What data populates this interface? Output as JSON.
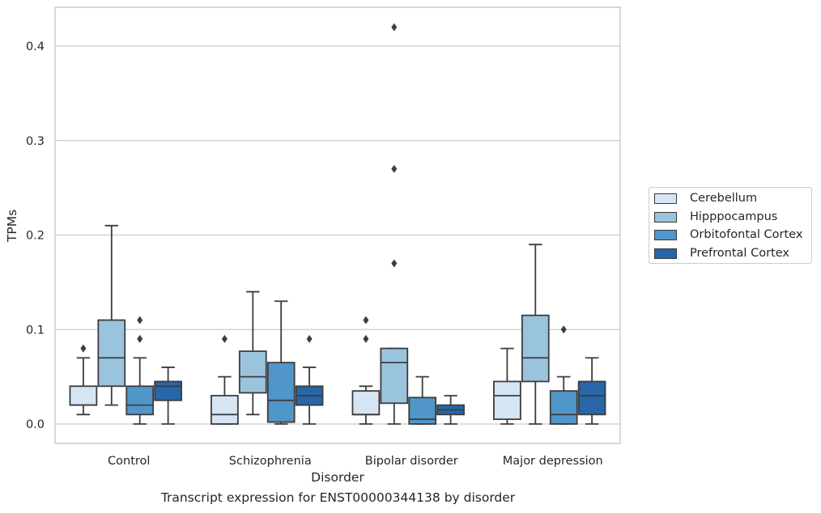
{
  "chart_data": {
    "type": "box",
    "xlabel": "Disorder",
    "ylabel": "TPMs",
    "caption": "Transcript expression for ENST00000344138 by disorder",
    "categories": [
      "Control",
      "Schizophrenia",
      "Bipolar disorder",
      "Major depression"
    ],
    "ylim": [
      -0.02,
      0.44
    ],
    "yticks": [
      0.0,
      0.1,
      0.2,
      0.3,
      0.4
    ],
    "ytick_labels": [
      "0.0",
      "0.1",
      "0.2",
      "0.3",
      "0.4"
    ],
    "grid": "horizontal",
    "legend_position": "right",
    "series": [
      {
        "name": "Cerebellum",
        "color": "#d6e5f4",
        "boxes": [
          {
            "whislo": 0.01,
            "q1": 0.02,
            "med": 0.02,
            "q3": 0.04,
            "whishi": 0.07,
            "fliers": [
              0.08
            ]
          },
          {
            "whislo": 0.0,
            "q1": 0.0,
            "med": 0.01,
            "q3": 0.03,
            "whishi": 0.05,
            "fliers": [
              0.09
            ]
          },
          {
            "whislo": 0.0,
            "q1": 0.01,
            "med": 0.01,
            "q3": 0.035,
            "whishi": 0.04,
            "fliers": [
              0.09,
              0.11
            ]
          },
          {
            "whislo": 0.0,
            "q1": 0.005,
            "med": 0.03,
            "q3": 0.045,
            "whishi": 0.08,
            "fliers": []
          }
        ]
      },
      {
        "name": "Hipppocampus",
        "color": "#9ac3de",
        "boxes": [
          {
            "whislo": 0.02,
            "q1": 0.04,
            "med": 0.07,
            "q3": 0.11,
            "whishi": 0.21,
            "fliers": []
          },
          {
            "whislo": 0.01,
            "q1": 0.033,
            "med": 0.05,
            "q3": 0.077,
            "whishi": 0.14,
            "fliers": []
          },
          {
            "whislo": 0.0,
            "q1": 0.022,
            "med": 0.065,
            "q3": 0.08,
            "whishi": 0.08,
            "fliers": [
              0.17,
              0.27,
              0.42
            ]
          },
          {
            "whislo": 0.0,
            "q1": 0.045,
            "med": 0.07,
            "q3": 0.115,
            "whishi": 0.19,
            "fliers": []
          }
        ]
      },
      {
        "name": "Orbitofontal Cortex",
        "color": "#5096c9",
        "boxes": [
          {
            "whislo": 0.0,
            "q1": 0.01,
            "med": 0.02,
            "q3": 0.04,
            "whishi": 0.07,
            "fliers": [
              0.09,
              0.11
            ]
          },
          {
            "whislo": 0.0,
            "q1": 0.002,
            "med": 0.025,
            "q3": 0.065,
            "whishi": 0.13,
            "fliers": []
          },
          {
            "whislo": 0.0,
            "q1": 0.0,
            "med": 0.005,
            "q3": 0.028,
            "whishi": 0.05,
            "fliers": []
          },
          {
            "whislo": 0.0,
            "q1": 0.0,
            "med": 0.01,
            "q3": 0.035,
            "whishi": 0.05,
            "fliers": [
              0.1
            ]
          }
        ]
      },
      {
        "name": "Prefrontal Cortex",
        "color": "#2766a8",
        "boxes": [
          {
            "whislo": 0.0,
            "q1": 0.025,
            "med": 0.04,
            "q3": 0.045,
            "whishi": 0.06,
            "fliers": []
          },
          {
            "whislo": 0.0,
            "q1": 0.02,
            "med": 0.03,
            "q3": 0.04,
            "whishi": 0.06,
            "fliers": [
              0.09
            ]
          },
          {
            "whislo": 0.0,
            "q1": 0.01,
            "med": 0.015,
            "q3": 0.02,
            "whishi": 0.03,
            "fliers": []
          },
          {
            "whislo": 0.0,
            "q1": 0.01,
            "med": 0.03,
            "q3": 0.045,
            "whishi": 0.07,
            "fliers": []
          }
        ]
      }
    ]
  }
}
